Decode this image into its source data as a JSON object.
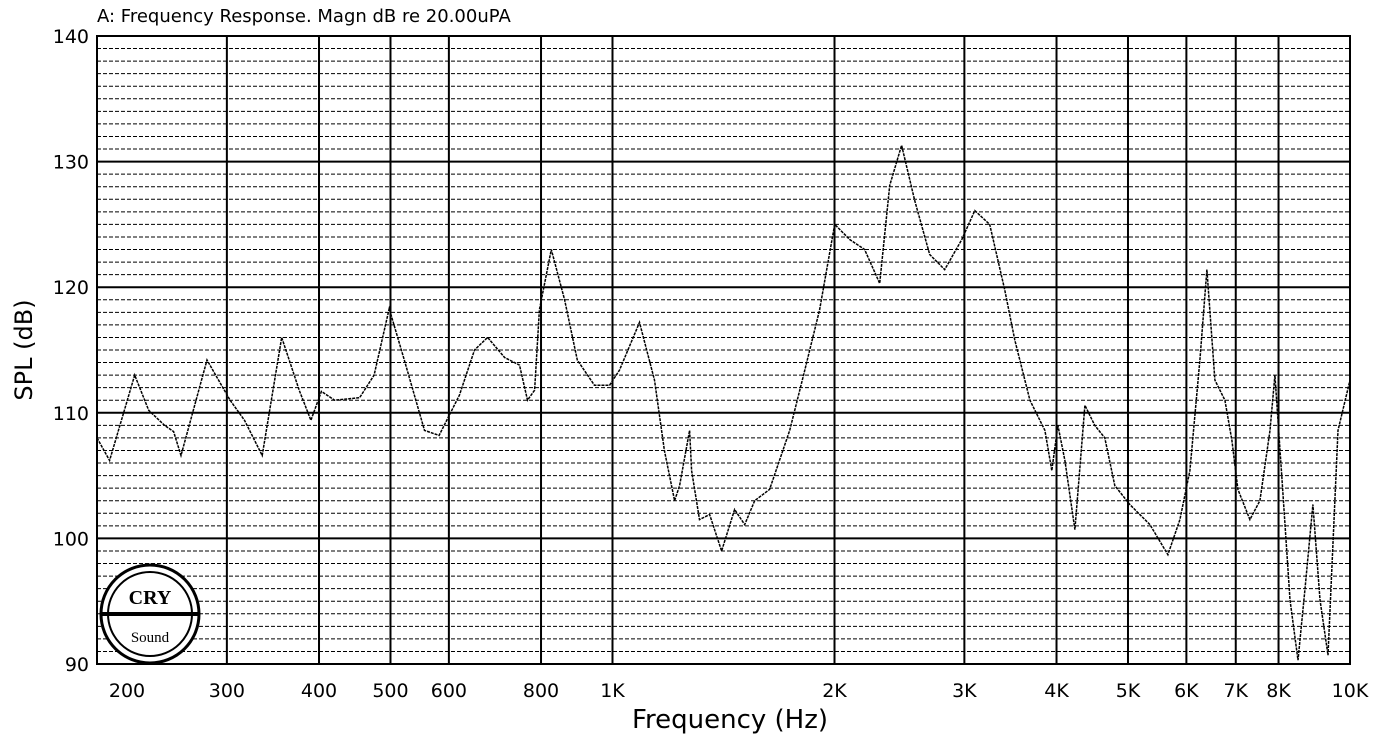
{
  "chart_data": {
    "type": "line",
    "title": "A: Frequency Response. Magn dB re 20.00uPA",
    "xlabel": "Frequency (Hz)",
    "ylabel": "SPL (dB)",
    "xscale": "log",
    "xlim": [
      200,
      10000
    ],
    "ylim": [
      90,
      140
    ],
    "xticks": [
      200,
      300,
      400,
      500,
      600,
      800,
      {
        "value": 1000,
        "label": "1K"
      },
      {
        "value": 2000,
        "label": "2K"
      },
      {
        "value": 3000,
        "label": "3K"
      },
      {
        "value": 4000,
        "label": "4K"
      },
      {
        "value": 5000,
        "label": "5K"
      },
      {
        "value": 6000,
        "label": "6K"
      },
      {
        "value": 7000,
        "label": "7K"
      },
      {
        "value": 8000,
        "label": "8K"
      },
      {
        "value": 10000,
        "label": "10K"
      }
    ],
    "yticks": [
      90,
      100,
      110,
      120,
      130,
      140
    ],
    "y_minor_step": 1,
    "grid": true,
    "logo": {
      "top": "CRY",
      "bottom": "Sound"
    },
    "x": [
      200,
      208,
      225,
      235,
      247,
      254,
      260,
      282,
      291,
      303,
      317,
      335,
      356,
      376,
      390,
      403,
      420,
      454,
      475,
      498,
      522,
      556,
      582,
      620,
      650,
      677,
      714,
      748,
      767,
      784,
      796,
      826,
      861,
      896,
      945,
      991,
      1022,
      1088,
      1140,
      1176,
      1214,
      1233,
      1272,
      1280,
      1312,
      1354,
      1406,
      1464,
      1511,
      1559,
      1633,
      1739,
      1823,
      1909,
      2001,
      2097,
      2197,
      2303,
      2376,
      2466,
      2569,
      2692,
      2821,
      2976,
      3099,
      3247,
      3403,
      3512,
      3681,
      3857,
      3942,
      4017,
      4106,
      4236,
      4370,
      4508,
      4651,
      4798,
      5029,
      5354,
      5664,
      5880,
      6067,
      6259,
      6397,
      6559,
      6767,
      6917,
      7047,
      7316,
      7549,
      7789,
      7911,
      8086,
      8292,
      8502,
      8687,
      8907,
      9105,
      9335,
      9632,
      10000
    ],
    "series": [
      {
        "color": "#000000",
        "values": [
          108,
          106.2,
          113,
          110.2,
          109,
          108.5,
          106.6,
          114.2,
          112.8,
          111,
          109.4,
          106.6,
          116,
          111.8,
          109.4,
          111.7,
          111,
          111.2,
          113,
          118.3,
          114.2,
          108.6,
          108.2,
          111.4,
          115,
          116,
          114.4,
          113.8,
          111,
          111.8,
          118.2,
          123,
          119,
          114.2,
          112.2,
          112.2,
          113.4,
          117.2,
          112.6,
          107,
          103,
          104.2,
          108.6,
          105.4,
          101.5,
          101.9,
          99,
          102.3,
          101.1,
          103,
          103.9,
          108.6,
          113.4,
          118.2,
          125,
          123.8,
          123,
          120.3,
          128.1,
          131.3,
          126.9,
          122.6,
          121.4,
          123.8,
          126.1,
          125,
          119.8,
          115.8,
          111,
          108.6,
          105.4,
          109,
          106.2,
          100.7,
          110.6,
          109,
          108,
          104.2,
          102.7,
          101.1,
          98.7,
          101.5,
          105.4,
          114.2,
          121.4,
          112.6,
          111,
          107.8,
          103.9,
          101.5,
          103,
          108.6,
          113,
          104.7,
          95.1,
          90.3,
          95.9,
          102.7,
          95.1,
          90.7,
          108.6,
          112.6
        ]
      }
    ]
  }
}
